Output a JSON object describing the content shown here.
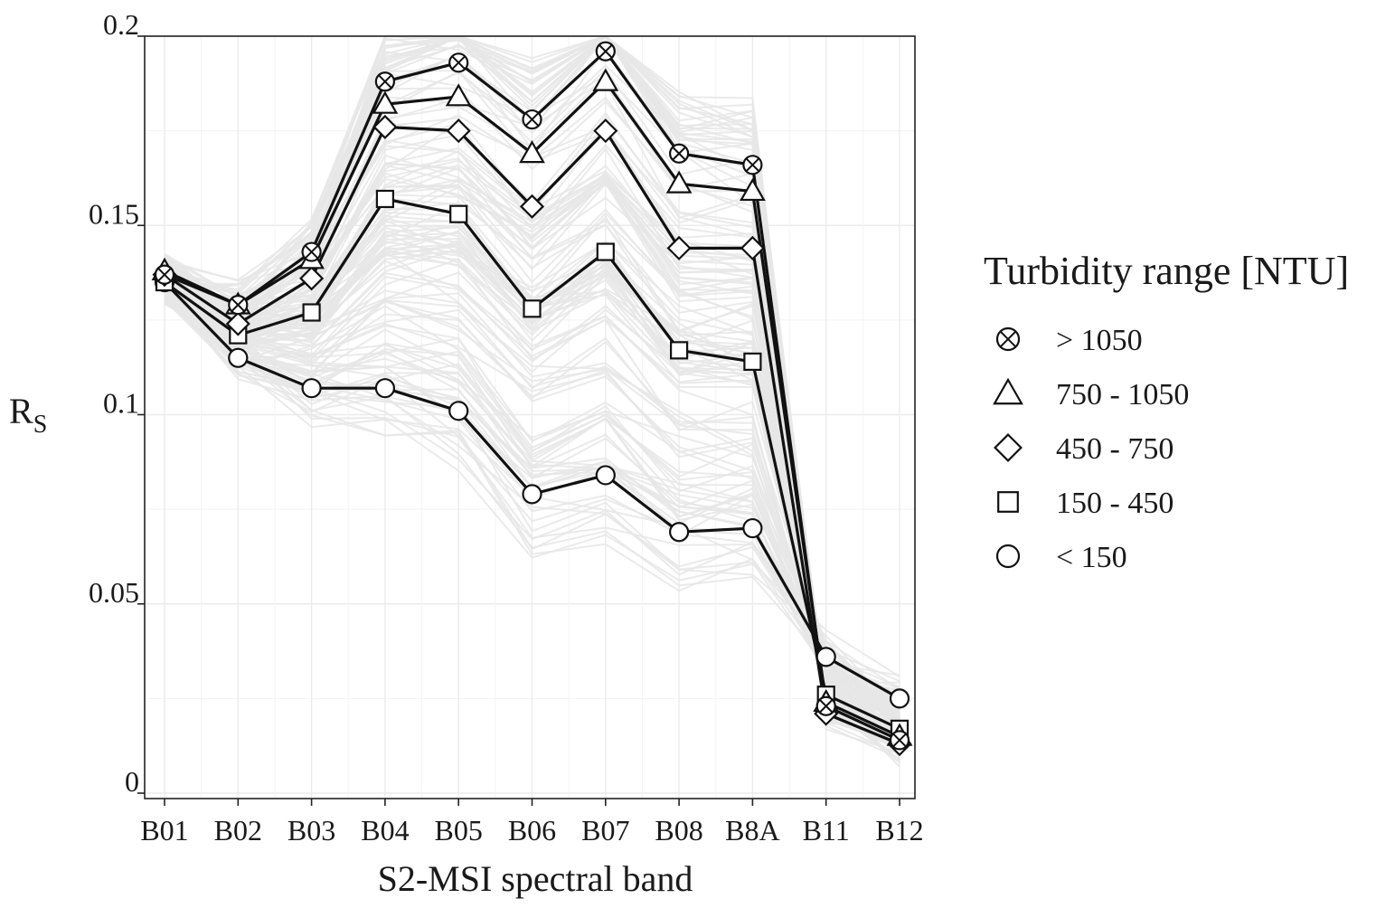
{
  "chart_data": {
    "type": "line",
    "title": "",
    "xlabel": "S2-MSI spectral band",
    "ylabel_main": "R",
    "ylabel_sub": "S",
    "categories": [
      "B01",
      "B02",
      "B03",
      "B04",
      "B05",
      "B06",
      "B07",
      "B08",
      "B8A",
      "B11",
      "B12"
    ],
    "ylim": [
      0,
      0.2
    ],
    "yticks": [
      0,
      0.05,
      0.1,
      0.15,
      0.2
    ],
    "ytick_labels": [
      "0",
      "0.05",
      "0.1",
      "0.15",
      "0.2"
    ],
    "grid": true,
    "legend": {
      "title": "Turbidity range [NTU]",
      "position": "right"
    },
    "series": [
      {
        "name": "> 1050",
        "marker": "circle-x",
        "values": [
          0.137,
          0.129,
          0.143,
          0.188,
          0.193,
          0.178,
          0.196,
          0.169,
          0.166,
          0.023,
          0.014
        ]
      },
      {
        "name": "750 - 1050",
        "marker": "triangle",
        "values": [
          0.138,
          0.129,
          0.141,
          0.182,
          0.184,
          0.169,
          0.188,
          0.161,
          0.159,
          0.024,
          0.015
        ]
      },
      {
        "name": "450 - 750",
        "marker": "diamond",
        "values": [
          0.137,
          0.124,
          0.136,
          0.176,
          0.175,
          0.155,
          0.175,
          0.144,
          0.144,
          0.021,
          0.013
        ]
      },
      {
        "name": "150 - 450",
        "marker": "square",
        "values": [
          0.135,
          0.121,
          0.127,
          0.157,
          0.153,
          0.128,
          0.143,
          0.117,
          0.114,
          0.026,
          0.017
        ]
      },
      {
        "name": "< 150",
        "marker": "circle",
        "values": [
          0.135,
          0.115,
          0.107,
          0.107,
          0.101,
          0.079,
          0.084,
          0.069,
          0.07,
          0.036,
          0.025
        ]
      }
    ],
    "background_series_color": "#e6e6e6",
    "colors": {
      "line": "#111111",
      "marker_fill": "#ffffff",
      "grid": "#ebebeb",
      "frame": "#222222"
    }
  }
}
